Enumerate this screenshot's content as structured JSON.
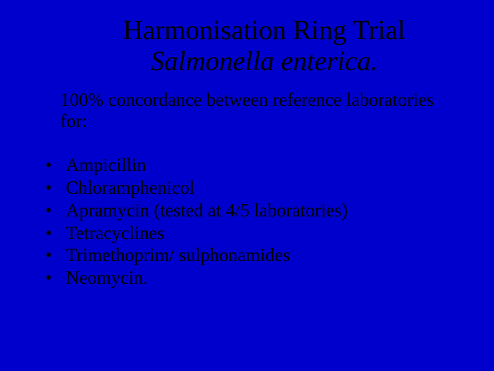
{
  "background_color": "#0000cc",
  "text_color": "#000000",
  "font_family": "Times New Roman",
  "title": {
    "line1": "Harmonisation Ring Trial",
    "line2": "Salmonella enterica.",
    "line1_fontsize": 40,
    "line2_fontsize": 40,
    "line2_italic": true
  },
  "intro": "100% concordance between reference laboratories for:",
  "intro_fontsize": 27,
  "bullet_char": "•",
  "bullets": [
    "Ampicillin",
    "Chloramphenicol",
    "Apramycin (tested at 4/5 laboratories)",
    "Tetracyclines",
    "Trimethoprim/ sulphonamides",
    "Neomycin."
  ],
  "bullet_fontsize": 27
}
